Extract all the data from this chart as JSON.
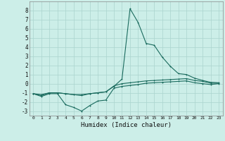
{
  "xlabel": "Humidex (Indice chaleur)",
  "background_color": "#cceee8",
  "grid_color": "#aad4ce",
  "line_color": "#1a6b5e",
  "x_values": [
    0,
    1,
    2,
    3,
    4,
    5,
    6,
    7,
    8,
    9,
    10,
    11,
    12,
    13,
    14,
    15,
    16,
    17,
    18,
    19,
    20,
    21,
    22,
    23
  ],
  "line_spike": [
    -1.1,
    -1.3,
    -1.0,
    -1.0,
    -1.1,
    -1.2,
    -1.2,
    -1.1,
    -1.0,
    -0.9,
    -0.3,
    0.5,
    8.2,
    6.7,
    4.4,
    4.2,
    2.9,
    1.9,
    1.1,
    1.0,
    0.6,
    0.35,
    0.15,
    0.1
  ],
  "line_low": [
    -1.1,
    -1.4,
    -1.1,
    -1.1,
    -2.3,
    -2.6,
    -3.0,
    -2.4,
    -1.9,
    -1.8,
    -0.5,
    -0.3,
    -0.2,
    -0.1,
    0.05,
    0.1,
    0.15,
    0.2,
    0.25,
    0.3,
    0.1,
    0.0,
    -0.1,
    0.0
  ],
  "line_mid": [
    -1.1,
    -1.2,
    -1.0,
    -1.0,
    -1.1,
    -1.2,
    -1.3,
    -1.1,
    -1.0,
    -0.9,
    -0.25,
    0.0,
    0.1,
    0.2,
    0.3,
    0.35,
    0.4,
    0.45,
    0.5,
    0.55,
    0.35,
    0.25,
    0.05,
    0.05
  ],
  "ylim": [
    -3.5,
    9.0
  ],
  "xlim": [
    -0.5,
    23.5
  ],
  "yticks": [
    -3,
    -2,
    -1,
    0,
    1,
    2,
    3,
    4,
    5,
    6,
    7,
    8
  ],
  "xticks": [
    0,
    1,
    2,
    3,
    4,
    5,
    6,
    7,
    8,
    9,
    10,
    11,
    12,
    13,
    14,
    15,
    16,
    17,
    18,
    19,
    20,
    21,
    22,
    23
  ]
}
